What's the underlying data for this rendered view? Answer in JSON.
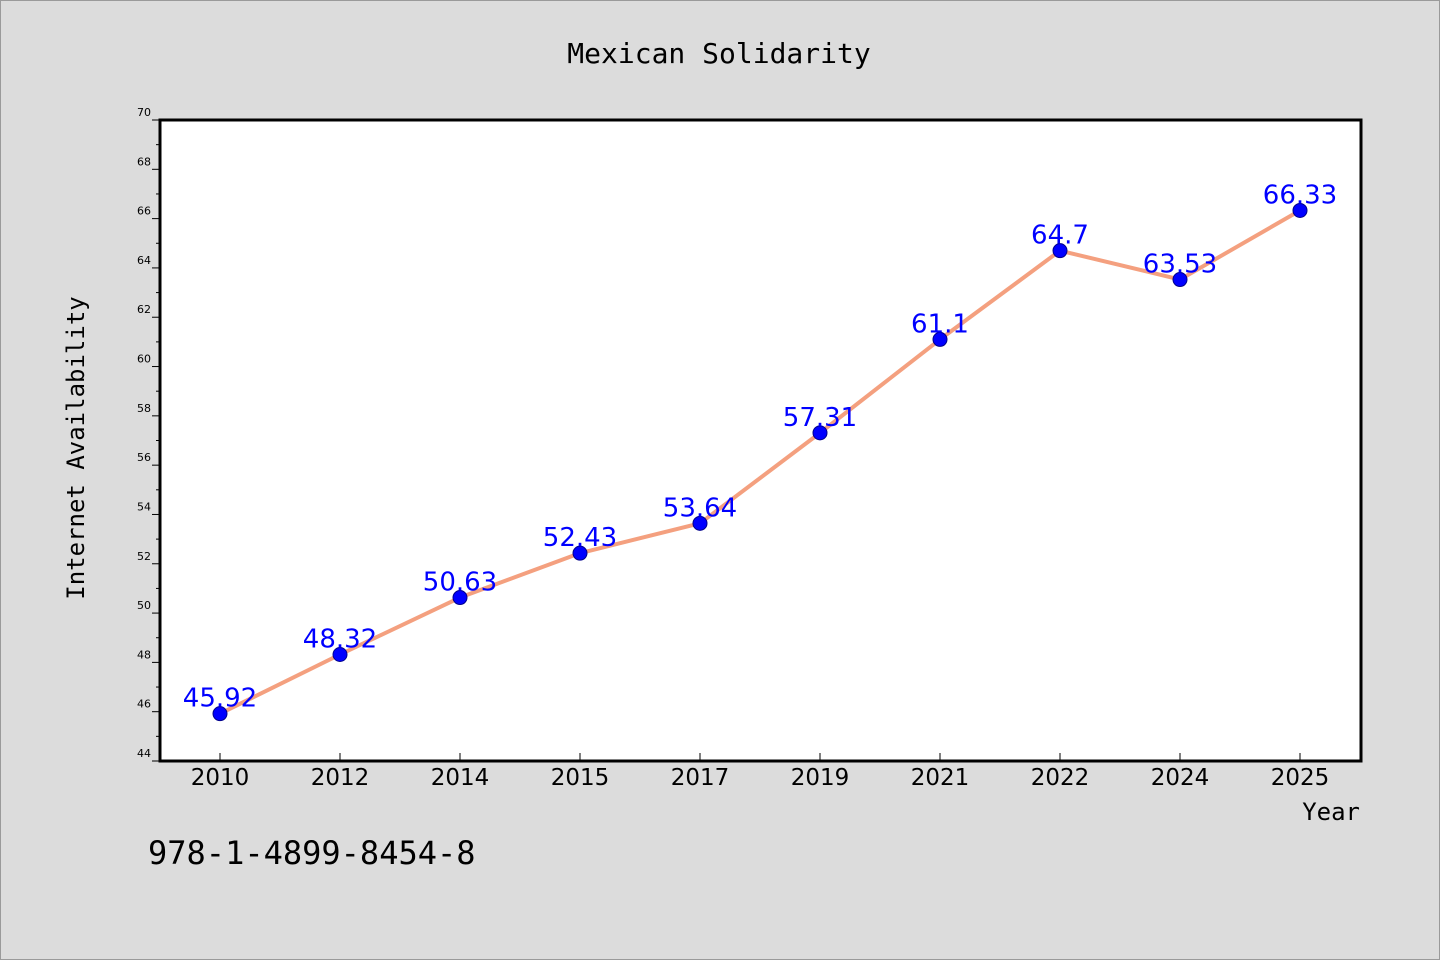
{
  "chart_data": {
    "type": "line",
    "title": "Mexican Solidarity",
    "xlabel": "Year",
    "ylabel": "Internet Availability",
    "categories": [
      "2010",
      "2012",
      "2014",
      "2015",
      "2017",
      "2019",
      "2021",
      "2022",
      "2024",
      "2025"
    ],
    "series": [
      {
        "values": [
          45.92,
          48.32,
          50.63,
          52.43,
          53.64,
          57.31,
          61.1,
          64.7,
          63.53,
          66.33
        ],
        "labels": [
          "45.92",
          "48.32",
          "50.63",
          "52.43",
          "53.64",
          "57.31",
          "61.1",
          "64.7",
          "63.53",
          "66.33"
        ],
        "line_color": "#f4a07f",
        "marker_color": "#0000ff"
      }
    ],
    "ylim": [
      44,
      70
    ],
    "yticks": [
      "44",
      "46",
      "48",
      "50",
      "52",
      "54",
      "56",
      "58",
      "60",
      "62",
      "64",
      "66",
      "68",
      "70"
    ],
    "grid": false,
    "legend": "none"
  },
  "footnote": "978-1-4899-8454-8",
  "colors": {
    "background": "#dcdcdc",
    "plot_background": "#ffffff",
    "line": "#f4a07f",
    "marker": "#0000ff",
    "data_label": "#0000ff"
  }
}
